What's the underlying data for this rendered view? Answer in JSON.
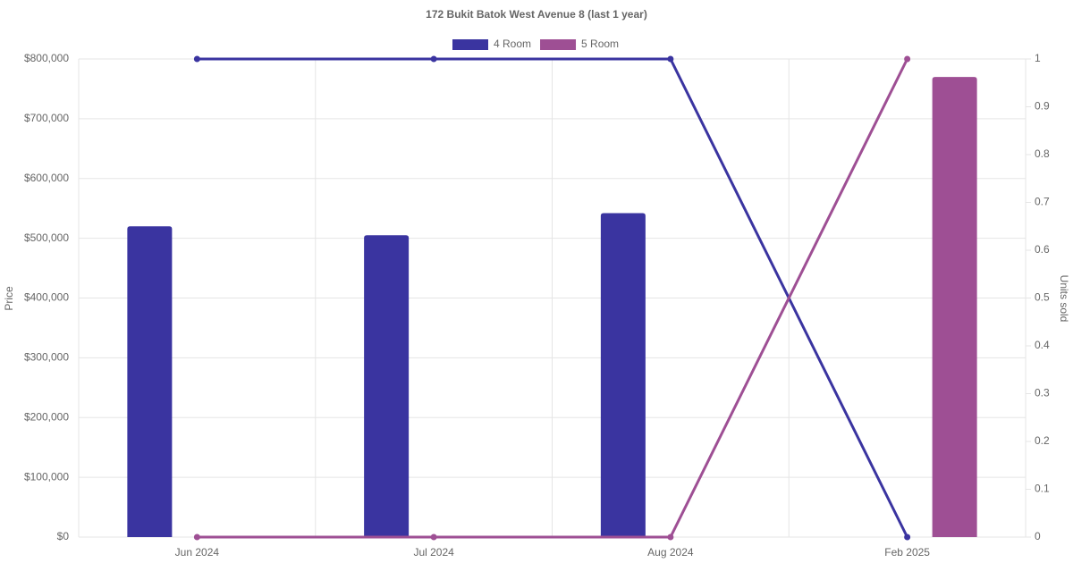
{
  "chart_data": {
    "type": "bar-line",
    "title": "172 Bukit Batok West Avenue 8 (last 1 year)",
    "categories": [
      "Jun 2024",
      "Jul 2024",
      "Aug 2024",
      "Feb 2025"
    ],
    "series": [
      {
        "name": "4 Room",
        "color": "#3a34a0",
        "values": [
          520000,
          505000,
          542000,
          null
        ],
        "units_sold": [
          1,
          1,
          1,
          0
        ]
      },
      {
        "name": "5 Room",
        "color": "#9e4f94",
        "values": [
          null,
          null,
          null,
          770000
        ],
        "units_sold": [
          0,
          0,
          0,
          1
        ]
      }
    ],
    "ylabel": "Price",
    "y2label": "Units sold",
    "ylim": [
      0,
      800000
    ],
    "yticks": [
      {
        "value": 0,
        "label": "$0"
      },
      {
        "value": 100000,
        "label": "$100,000"
      },
      {
        "value": 200000,
        "label": "$200,000"
      },
      {
        "value": 300000,
        "label": "$300,000"
      },
      {
        "value": 400000,
        "label": "$400,000"
      },
      {
        "value": 500000,
        "label": "$500,000"
      },
      {
        "value": 600000,
        "label": "$600,000"
      },
      {
        "value": 700000,
        "label": "$700,000"
      },
      {
        "value": 800000,
        "label": "$800,000"
      }
    ],
    "y2lim": [
      0,
      1
    ],
    "y2ticks": [
      0,
      0.1,
      0.2,
      0.3,
      0.4,
      0.5,
      0.6,
      0.7,
      0.8,
      0.9,
      1
    ],
    "grid": true
  }
}
